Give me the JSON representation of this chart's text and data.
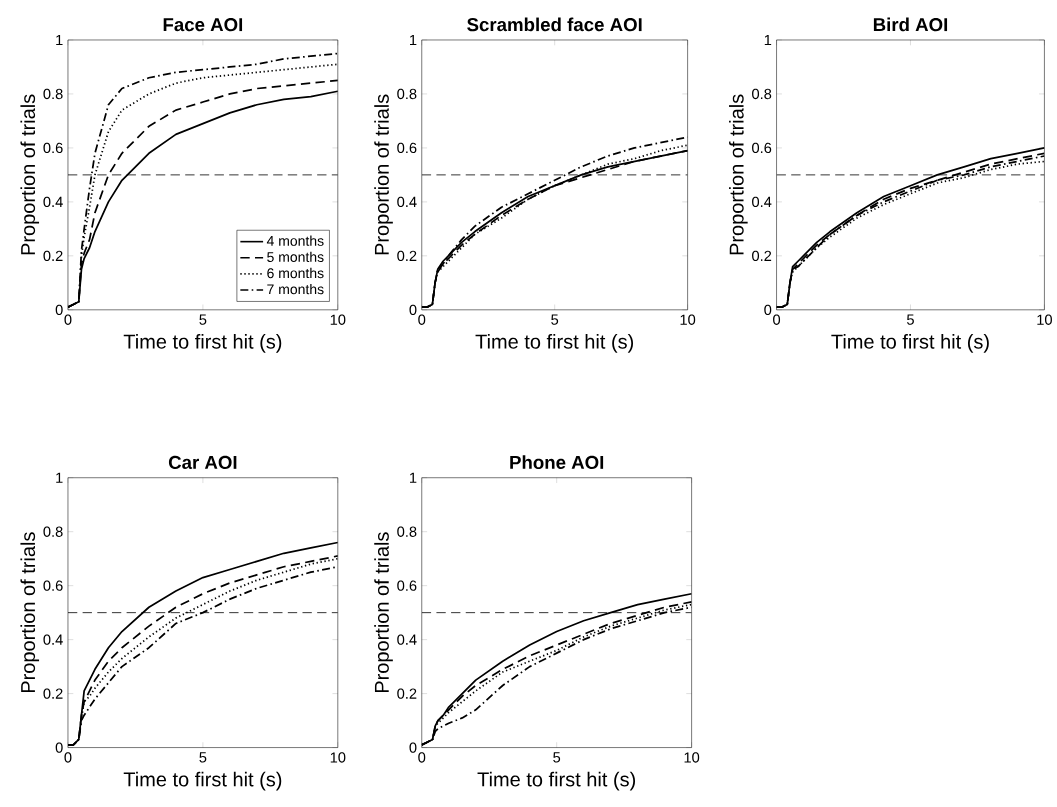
{
  "chart_data": [
    {
      "type": "line",
      "title": "Face AOI",
      "xlabel": "Time to first hit (s)",
      "ylabel": "Proportion of trials",
      "x": [
        0,
        0.2,
        0.4,
        0.5,
        0.6,
        0.8,
        1,
        1.5,
        2,
        3,
        4,
        5,
        6,
        7,
        8,
        9,
        10
      ],
      "xlim": [
        0,
        10
      ],
      "xticks": [
        0,
        5,
        10
      ],
      "ylim": [
        0,
        1
      ],
      "yticks": [
        0,
        0.2,
        0.4,
        0.6,
        0.8,
        1
      ],
      "grid": false,
      "legend": "bottom right",
      "ref_lines": [
        {
          "axis": "y",
          "value": 0.5,
          "color": "#000000",
          "line_style": "dashed"
        }
      ],
      "series": [
        {
          "name": "4 months",
          "color": "#000000",
          "line_style": "solid",
          "values": [
            0.01,
            0.02,
            0.03,
            0.15,
            0.19,
            0.23,
            0.29,
            0.4,
            0.48,
            0.58,
            0.65,
            0.69,
            0.73,
            0.76,
            0.78,
            0.79,
            0.81
          ]
        },
        {
          "name": "5 months",
          "color": "#000000",
          "line_style": "dashed",
          "values": [
            0.01,
            0.02,
            0.03,
            0.17,
            0.21,
            0.26,
            0.36,
            0.5,
            0.58,
            0.68,
            0.74,
            0.77,
            0.8,
            0.82,
            0.83,
            0.84,
            0.85
          ]
        },
        {
          "name": "6 months",
          "color": "#000000",
          "line_style": "dotted",
          "values": [
            0.01,
            0.02,
            0.03,
            0.2,
            0.27,
            0.38,
            0.5,
            0.66,
            0.74,
            0.8,
            0.84,
            0.86,
            0.87,
            0.88,
            0.89,
            0.9,
            0.91
          ]
        },
        {
          "name": "7 months",
          "color": "#000000",
          "line_style": "dashdot",
          "values": [
            0.01,
            0.02,
            0.03,
            0.22,
            0.3,
            0.45,
            0.58,
            0.76,
            0.82,
            0.86,
            0.88,
            0.89,
            0.9,
            0.91,
            0.93,
            0.94,
            0.95
          ]
        }
      ]
    },
    {
      "type": "line",
      "title": "Scrambled face AOI",
      "xlabel": "Time to first hit (s)",
      "ylabel": "Proportion of trials",
      "x": [
        0,
        0.2,
        0.4,
        0.5,
        0.6,
        0.8,
        1,
        1.5,
        2,
        3,
        4,
        5,
        6,
        7,
        8,
        9,
        10
      ],
      "xlim": [
        0,
        10
      ],
      "xticks": [
        0,
        5,
        10
      ],
      "ylim": [
        0,
        1
      ],
      "yticks": [
        0,
        0.2,
        0.4,
        0.6,
        0.8,
        1
      ],
      "grid": false,
      "ref_lines": [
        {
          "axis": "y",
          "value": 0.5,
          "color": "#000000",
          "line_style": "dashed"
        }
      ],
      "series": [
        {
          "color": "#000000",
          "line_style": "solid",
          "values": [
            0.01,
            0.01,
            0.02,
            0.1,
            0.15,
            0.18,
            0.2,
            0.25,
            0.29,
            0.36,
            0.42,
            0.46,
            0.5,
            0.53,
            0.55,
            0.57,
            0.59
          ]
        },
        {
          "color": "#000000",
          "line_style": "dashed",
          "values": [
            0.01,
            0.01,
            0.02,
            0.1,
            0.14,
            0.17,
            0.19,
            0.24,
            0.28,
            0.35,
            0.41,
            0.46,
            0.49,
            0.52,
            0.55,
            0.57,
            0.59
          ]
        },
        {
          "color": "#000000",
          "line_style": "dotted",
          "values": [
            0.01,
            0.01,
            0.02,
            0.1,
            0.14,
            0.16,
            0.18,
            0.23,
            0.28,
            0.34,
            0.41,
            0.46,
            0.5,
            0.54,
            0.56,
            0.59,
            0.61
          ]
        },
        {
          "color": "#000000",
          "line_style": "dashdot",
          "values": [
            0.01,
            0.01,
            0.02,
            0.1,
            0.15,
            0.17,
            0.2,
            0.26,
            0.31,
            0.38,
            0.43,
            0.48,
            0.53,
            0.57,
            0.6,
            0.62,
            0.64
          ]
        }
      ]
    },
    {
      "type": "line",
      "title": "Bird AOI",
      "xlabel": "Time to first hit (s)",
      "ylabel": "Proportion of trials",
      "x": [
        0,
        0.2,
        0.4,
        0.5,
        0.6,
        0.8,
        1,
        1.5,
        2,
        3,
        4,
        5,
        6,
        7,
        8,
        9,
        10
      ],
      "xlim": [
        0,
        10
      ],
      "xticks": [
        0,
        5,
        10
      ],
      "ylim": [
        0,
        1
      ],
      "yticks": [
        0,
        0.2,
        0.4,
        0.6,
        0.8,
        1
      ],
      "grid": false,
      "ref_lines": [
        {
          "axis": "y",
          "value": 0.5,
          "color": "#000000",
          "line_style": "dashed"
        }
      ],
      "series": [
        {
          "color": "#000000",
          "line_style": "solid",
          "values": [
            0.01,
            0.01,
            0.02,
            0.1,
            0.16,
            0.18,
            0.2,
            0.25,
            0.29,
            0.36,
            0.42,
            0.46,
            0.5,
            0.53,
            0.56,
            0.58,
            0.6
          ]
        },
        {
          "color": "#000000",
          "line_style": "dashed",
          "values": [
            0.01,
            0.01,
            0.02,
            0.1,
            0.15,
            0.17,
            0.19,
            0.24,
            0.28,
            0.35,
            0.41,
            0.45,
            0.48,
            0.51,
            0.54,
            0.56,
            0.58
          ]
        },
        {
          "color": "#000000",
          "line_style": "dotted",
          "values": [
            0.01,
            0.01,
            0.02,
            0.1,
            0.14,
            0.16,
            0.18,
            0.23,
            0.27,
            0.34,
            0.39,
            0.43,
            0.47,
            0.49,
            0.52,
            0.54,
            0.55
          ]
        },
        {
          "color": "#000000",
          "line_style": "dashdot",
          "values": [
            0.01,
            0.01,
            0.02,
            0.1,
            0.15,
            0.16,
            0.18,
            0.23,
            0.28,
            0.35,
            0.4,
            0.44,
            0.48,
            0.5,
            0.53,
            0.55,
            0.57
          ]
        }
      ]
    },
    {
      "type": "line",
      "title": "Car AOI",
      "xlabel": "Time to first hit (s)",
      "ylabel": "Proportion of trials",
      "x": [
        0,
        0.2,
        0.4,
        0.5,
        0.6,
        0.8,
        1,
        1.5,
        2,
        3,
        4,
        5,
        6,
        7,
        8,
        9,
        10
      ],
      "xlim": [
        0,
        10
      ],
      "xticks": [
        0,
        5,
        10
      ],
      "ylim": [
        0,
        1
      ],
      "yticks": [
        0,
        0.2,
        0.4,
        0.6,
        0.8,
        1
      ],
      "grid": false,
      "ref_lines": [
        {
          "axis": "y",
          "value": 0.5,
          "color": "#000000",
          "line_style": "dashed"
        }
      ],
      "series": [
        {
          "color": "#000000",
          "line_style": "solid",
          "values": [
            0.01,
            0.01,
            0.03,
            0.12,
            0.21,
            0.25,
            0.29,
            0.37,
            0.43,
            0.52,
            0.58,
            0.63,
            0.66,
            0.69,
            0.72,
            0.74,
            0.76
          ]
        },
        {
          "color": "#000000",
          "line_style": "dashed",
          "values": [
            0.01,
            0.01,
            0.03,
            0.12,
            0.17,
            0.21,
            0.25,
            0.32,
            0.37,
            0.45,
            0.52,
            0.57,
            0.61,
            0.64,
            0.67,
            0.69,
            0.71
          ]
        },
        {
          "color": "#000000",
          "line_style": "dotted",
          "values": [
            0.01,
            0.01,
            0.03,
            0.11,
            0.17,
            0.19,
            0.22,
            0.28,
            0.33,
            0.41,
            0.48,
            0.53,
            0.58,
            0.62,
            0.65,
            0.68,
            0.7
          ]
        },
        {
          "color": "#000000",
          "line_style": "dashdot",
          "values": [
            0.01,
            0.01,
            0.03,
            0.1,
            0.12,
            0.15,
            0.18,
            0.24,
            0.3,
            0.37,
            0.46,
            0.5,
            0.55,
            0.59,
            0.62,
            0.65,
            0.67
          ]
        }
      ]
    },
    {
      "type": "line",
      "title": "Phone AOI",
      "xlabel": "Time to first hit (s)",
      "ylabel": "Proportion of trials",
      "x": [
        0,
        0.2,
        0.4,
        0.5,
        0.6,
        0.8,
        1,
        1.5,
        2,
        3,
        4,
        5,
        6,
        7,
        8,
        9,
        10
      ],
      "xlim": [
        0,
        10
      ],
      "xticks": [
        0,
        5,
        10
      ],
      "ylim": [
        0,
        1
      ],
      "yticks": [
        0,
        0.2,
        0.4,
        0.6,
        0.8,
        1
      ],
      "grid": false,
      "ref_lines": [
        {
          "axis": "y",
          "value": 0.5,
          "color": "#000000",
          "line_style": "dashed"
        }
      ],
      "series": [
        {
          "color": "#000000",
          "line_style": "solid",
          "values": [
            0.01,
            0.02,
            0.03,
            0.08,
            0.1,
            0.12,
            0.15,
            0.2,
            0.25,
            0.32,
            0.38,
            0.43,
            0.47,
            0.5,
            0.53,
            0.55,
            0.57
          ]
        },
        {
          "color": "#000000",
          "line_style": "dashed",
          "values": [
            0.01,
            0.02,
            0.03,
            0.08,
            0.1,
            0.12,
            0.14,
            0.19,
            0.23,
            0.29,
            0.34,
            0.38,
            0.42,
            0.46,
            0.49,
            0.52,
            0.54
          ]
        },
        {
          "color": "#000000",
          "line_style": "dotted",
          "values": [
            0.01,
            0.02,
            0.03,
            0.08,
            0.09,
            0.11,
            0.13,
            0.17,
            0.21,
            0.28,
            0.32,
            0.36,
            0.41,
            0.45,
            0.48,
            0.51,
            0.53
          ]
        },
        {
          "color": "#000000",
          "line_style": "dashdot",
          "values": [
            0.01,
            0.02,
            0.03,
            0.06,
            0.07,
            0.08,
            0.09,
            0.11,
            0.14,
            0.23,
            0.3,
            0.35,
            0.4,
            0.44,
            0.47,
            0.5,
            0.52
          ]
        }
      ]
    }
  ]
}
